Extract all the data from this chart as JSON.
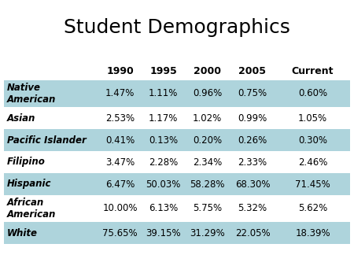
{
  "title": "Student Demographics",
  "columns": [
    "",
    "1990",
    "1995",
    "2000",
    "2005",
    "Current"
  ],
  "rows": [
    [
      "Native\nAmerican",
      "1.47%",
      "1.11%",
      "0.96%",
      "0.75%",
      "0.60%"
    ],
    [
      "Asian",
      "2.53%",
      "1.17%",
      "1.02%",
      "0.99%",
      "1.05%"
    ],
    [
      "Pacific Islander",
      "0.41%",
      "0.13%",
      "0.20%",
      "0.26%",
      "0.30%"
    ],
    [
      "Filipino",
      "3.47%",
      "2.28%",
      "2.34%",
      "2.33%",
      "2.46%"
    ],
    [
      "Hispanic",
      "6.47%",
      "50.03%",
      "58.28%",
      "68.30%",
      "71.45%"
    ],
    [
      "African\nAmerican",
      "10.00%",
      "6.13%",
      "5.75%",
      "5.32%",
      "5.62%"
    ],
    [
      "White",
      "75.65%",
      "39.15%",
      "31.29%",
      "22.05%",
      "18.39%"
    ]
  ],
  "shaded_rows": [
    0,
    2,
    4,
    6
  ],
  "shade_color": "#aed4dc",
  "background_color": "#ffffff",
  "title_fontsize": 18,
  "cell_fontsize": 8.5,
  "header_fontsize": 9
}
